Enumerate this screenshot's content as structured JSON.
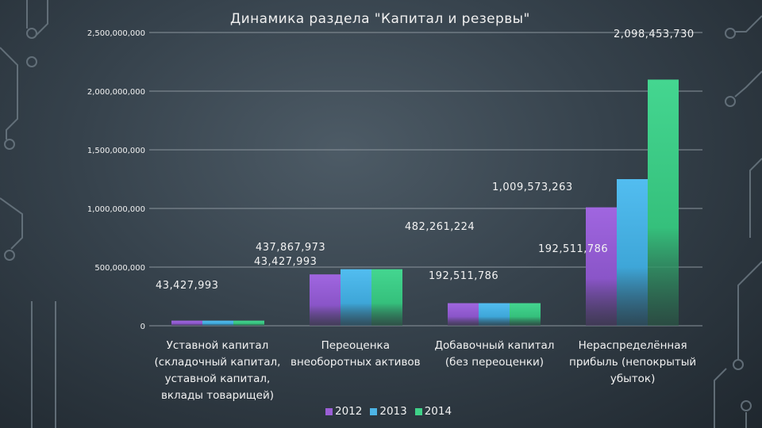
{
  "chart_data": {
    "type": "bar",
    "title": "Динамика раздела \"Капитал и резервы\"",
    "categories": [
      [
        "Уставной капитал",
        "(складочный капитал,",
        "уставной капитал,",
        "вклады товарищей)"
      ],
      [
        "Переоценка",
        "внеоборотных активов"
      ],
      [
        "Добавочный капитал",
        "(без переоценки)"
      ],
      [
        "Нераспределённая",
        "прибыль (непокрытый",
        "убыток)"
      ]
    ],
    "series": [
      {
        "name": "2012",
        "color": "#9b5fd6",
        "values": [
          43427993,
          437867973,
          192511786,
          1009573263
        ]
      },
      {
        "name": "2013",
        "color": "#4db4e6",
        "values": [
          43427993,
          482261224,
          192511786,
          1250000000
        ]
      },
      {
        "name": "2014",
        "color": "#3fd188",
        "values": [
          43427993,
          482261224,
          192511786,
          2098453730
        ]
      }
    ],
    "ylim": [
      0,
      2500000000
    ],
    "yticks": [
      "0",
      "500,000,000",
      "1,000,000,000",
      "1,500,000,000",
      "2,000,000,000",
      "2,500,000,000"
    ],
    "ytick_values": [
      0,
      500000000,
      1000000000,
      1500000000,
      2000000000,
      2500000000
    ],
    "data_labels": [
      {
        "text": "43,427,993"
      },
      {
        "text": "437,867,973"
      },
      {
        "text": "43,427,993"
      },
      {
        "text": "482,261,224"
      },
      {
        "text": "192,511,786"
      },
      {
        "text": "192,511,786"
      },
      {
        "text": "1,009,573,263"
      },
      {
        "text": "2,098,453,730"
      }
    ],
    "legend_position": "bottom",
    "grid": true
  }
}
